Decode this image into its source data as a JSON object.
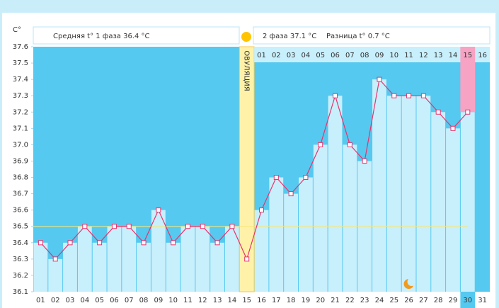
{
  "chart_data": {
    "type": "line",
    "y_label": "C°",
    "phase1_text": "Средняя t° 1 фаза 36.4 °C",
    "phase2_text": "2 фаза 37.1 °C",
    "difference_text": "Разница t° 0.7 °C",
    "ovulation_label": "ОВУЛЯЦИЯ",
    "ovulation_category": "15",
    "highlight_category": "30",
    "moon_category": "26",
    "categories": [
      "01",
      "02",
      "03",
      "04",
      "05",
      "06",
      "07",
      "08",
      "09",
      "10",
      "11",
      "12",
      "13",
      "14",
      "15",
      "16",
      "17",
      "18",
      "19",
      "20",
      "21",
      "22",
      "23",
      "24",
      "25",
      "26",
      "27",
      "28",
      "29",
      "30",
      "31"
    ],
    "phase2_labels": [
      "01",
      "02",
      "03",
      "04",
      "05",
      "06",
      "07",
      "08",
      "09",
      "10",
      "11",
      "12",
      "13",
      "14",
      "15",
      "16"
    ],
    "series": [
      {
        "name": "t°",
        "color": "#e8336b",
        "values": [
          36.4,
          36.3,
          36.4,
          36.5,
          36.4,
          36.5,
          36.5,
          36.4,
          36.6,
          36.4,
          36.5,
          36.5,
          36.4,
          36.5,
          36.3,
          36.6,
          36.8,
          36.7,
          36.8,
          37.0,
          37.3,
          37.0,
          36.9,
          37.4,
          37.3,
          37.3,
          37.3,
          37.2,
          37.1,
          37.2,
          null
        ]
      }
    ],
    "coverline": 36.5,
    "ylim": [
      36.1,
      37.6
    ],
    "yticks": [
      36.1,
      36.2,
      36.3,
      36.4,
      36.5,
      36.6,
      36.7,
      36.8,
      36.9,
      {
        "value": 37,
        "label": "37.0"
      },
      37.1,
      37.2,
      37.3,
      37.4,
      37.5,
      37.6
    ],
    "background_color": "#55c9f0",
    "bar_color": "#c8effc"
  }
}
